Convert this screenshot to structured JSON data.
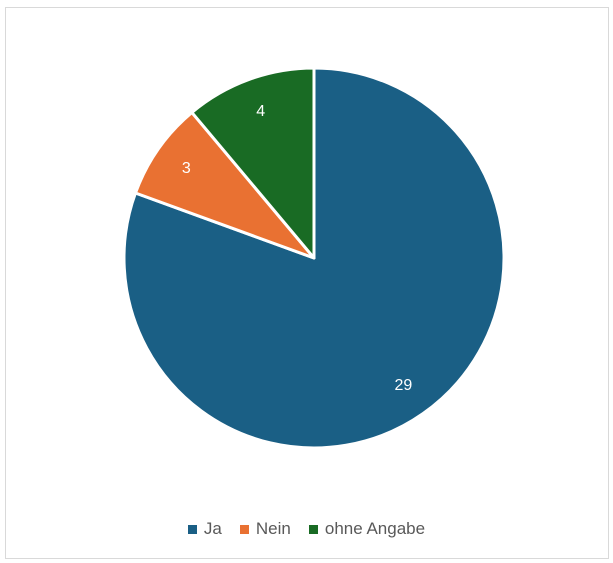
{
  "chart_data": {
    "type": "pie",
    "title": "",
    "categories": [
      "Ja",
      "Nein",
      "ohne Angabe"
    ],
    "values": [
      29,
      3,
      4
    ],
    "colors": [
      "#1a5f85",
      "#e97132",
      "#196b24"
    ],
    "data_labels": [
      "29",
      "3",
      "4"
    ],
    "start_angle": "12 o'clock",
    "direction": "clockwise",
    "legend_position": "bottom",
    "slice_border_color": "#ffffff",
    "label_color": "#ffffff"
  }
}
